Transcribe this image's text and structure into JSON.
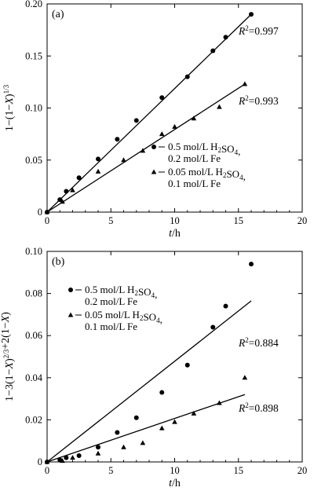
{
  "chart_data": [
    {
      "type": "scatter",
      "panel_label": "(a)",
      "xlabel": "t/h",
      "ylabel": "1−(1−X)^{1/3}",
      "xlim": [
        0,
        20
      ],
      "ylim": [
        0,
        0.2
      ],
      "xticks": [
        "0",
        "5",
        "10",
        "15",
        "20"
      ],
      "yticks": [
        "0",
        "0.05",
        "0.10",
        "0.15",
        "0.20"
      ],
      "legend_position": "lower-right",
      "series": [
        {
          "name": "0.5 mol/L H2SO4, 0.2 mol/L Fe",
          "legend_lines": [
            "0.5 mol/L H|2|SO|4|,",
            "0.2 mol/L Fe"
          ],
          "marker": "circle",
          "x": [
            0,
            1,
            1.5,
            2.5,
            4,
            5.5,
            7,
            9,
            11,
            13,
            14,
            16
          ],
          "y": [
            0,
            0.012,
            0.02,
            0.033,
            0.051,
            0.07,
            0.088,
            0.11,
            0.13,
            0.155,
            0.168,
            0.19
          ],
          "fit": {
            "x": [
              0,
              16
            ],
            "y": [
              0,
              0.19
            ]
          },
          "r2_label": "R2=0.997"
        },
        {
          "name": "0.05 mol/L H2SO4, 0.1 mol/L Fe",
          "legend_lines": [
            "0.05 mol/L H|2|SO|4|,",
            "0.1 mol/L Fe"
          ],
          "marker": "triangle",
          "x": [
            0,
            1.2,
            2,
            4,
            6,
            7.5,
            9,
            10,
            11.5,
            13.5,
            15.5
          ],
          "y": [
            0,
            0.01,
            0.021,
            0.039,
            0.05,
            0.059,
            0.075,
            0.082,
            0.09,
            0.101,
            0.123
          ],
          "fit": {
            "x": [
              0,
              15.5
            ],
            "y": [
              0,
              0.123
            ]
          },
          "r2_label": "R2=0.993"
        }
      ]
    },
    {
      "type": "scatter",
      "panel_label": "(b)",
      "xlabel": "t/h",
      "ylabel": "1−3(1−X)^{2/3}+2(1−X)",
      "xlim": [
        0,
        20
      ],
      "ylim": [
        0,
        0.1
      ],
      "xticks": [
        "0",
        "5",
        "10",
        "15",
        "20"
      ],
      "yticks": [
        "0",
        "0.02",
        "0.04",
        "0.06",
        "0.08",
        "0.10"
      ],
      "legend_position": "top-left",
      "series": [
        {
          "name": "0.5 mol/L H2SO4, 0.2 mol/L Fe",
          "legend_lines": [
            "0.5 mol/L H|2|SO|4|,",
            "0.2 mol/L Fe"
          ],
          "marker": "circle",
          "x": [
            0,
            1,
            1.5,
            2.5,
            4,
            5.5,
            7,
            9,
            11,
            13,
            14,
            16
          ],
          "y": [
            0,
            0.001,
            0.002,
            0.003,
            0.007,
            0.014,
            0.021,
            0.033,
            0.046,
            0.064,
            0.074,
            0.094
          ],
          "fit": {
            "x": [
              0,
              16
            ],
            "y": [
              0,
              0.0765
            ]
          },
          "r2_label": "R2=0.884"
        },
        {
          "name": "0.05 mol/L H2SO4, 0.1 mol/L Fe",
          "legend_lines": [
            "0.05 mol/L H|2|SO|4|,",
            "0.1 mol/L Fe"
          ],
          "marker": "triangle",
          "x": [
            0,
            1.2,
            2,
            4,
            6,
            7.5,
            9,
            10,
            11.5,
            13.5,
            15.5
          ],
          "y": [
            0,
            0.0005,
            0.002,
            0.004,
            0.007,
            0.009,
            0.016,
            0.019,
            0.023,
            0.028,
            0.04
          ],
          "fit": {
            "x": [
              0,
              15.5
            ],
            "y": [
              0,
              0.032
            ]
          },
          "r2_label": "R2=0.898"
        }
      ]
    }
  ]
}
